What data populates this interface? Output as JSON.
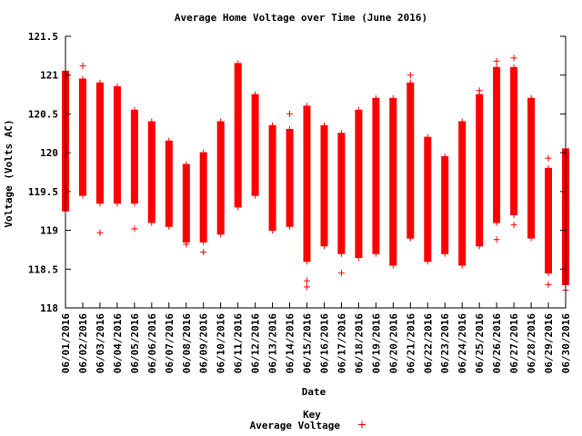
{
  "chart_data": {
    "type": "scatter",
    "title": "Average Home Voltage over Time (June 2016)",
    "xlabel": "Date",
    "ylabel": "Voltage (Volts AC)",
    "ylim": [
      118,
      121.5
    ],
    "yticks": [
      "118",
      "118.5",
      "119",
      "119.5",
      "120",
      "120.5",
      "121",
      "121.5"
    ],
    "grid": false,
    "legend": {
      "title": "Key",
      "placement": "bottom-center",
      "entries": [
        {
          "label": "Average Voltage",
          "marker": "+"
        }
      ]
    },
    "colors": {
      "series": "#ff0000",
      "axis": "#000000",
      "background": "#ffffff"
    },
    "categories": [
      "06/01/2016",
      "06/02/2016",
      "06/03/2016",
      "06/04/2016",
      "06/05/2016",
      "06/06/2016",
      "06/07/2016",
      "06/08/2016",
      "06/09/2016",
      "06/10/2016",
      "06/11/2016",
      "06/12/2016",
      "06/13/2016",
      "06/14/2016",
      "06/15/2016",
      "06/16/2016",
      "06/17/2016",
      "06/18/2016",
      "06/19/2016",
      "06/20/2016",
      "06/21/2016",
      "06/22/2016",
      "06/23/2016",
      "06/24/2016",
      "06/25/2016",
      "06/26/2016",
      "06/27/2016",
      "06/28/2016",
      "06/29/2016",
      "06/30/2016"
    ],
    "series": [
      {
        "name": "Average Voltage",
        "daily_min": [
          119.25,
          119.45,
          119.35,
          119.35,
          119.35,
          119.1,
          119.05,
          118.85,
          118.85,
          118.95,
          119.3,
          119.45,
          119.0,
          119.05,
          118.6,
          118.8,
          118.7,
          118.65,
          118.7,
          118.55,
          118.9,
          118.6,
          118.7,
          118.55,
          118.8,
          119.1,
          119.2,
          118.9,
          118.45,
          118.3
        ],
        "daily_max": [
          121.05,
          120.95,
          120.9,
          120.85,
          120.55,
          120.4,
          120.15,
          119.85,
          120.0,
          120.4,
          121.15,
          120.75,
          120.35,
          120.3,
          120.6,
          120.35,
          120.25,
          120.55,
          120.7,
          120.7,
          120.9,
          120.2,
          119.95,
          120.4,
          120.75,
          121.1,
          121.1,
          120.7,
          119.8,
          120.05
        ],
        "outliers": [
          [
            1,
            121.12
          ],
          [
            2,
            118.97
          ],
          [
            4,
            119.02
          ],
          [
            7,
            118.82
          ],
          [
            8,
            118.72
          ],
          [
            13,
            120.5
          ],
          [
            14,
            118.35
          ],
          [
            14,
            118.27
          ],
          [
            16,
            118.45
          ],
          [
            20,
            121.0
          ],
          [
            24,
            120.8
          ],
          [
            25,
            118.88
          ],
          [
            25,
            121.18
          ],
          [
            26,
            121.22
          ],
          [
            26,
            119.07
          ],
          [
            28,
            119.93
          ],
          [
            28,
            118.3
          ],
          [
            29,
            118.23
          ]
        ]
      }
    ]
  }
}
